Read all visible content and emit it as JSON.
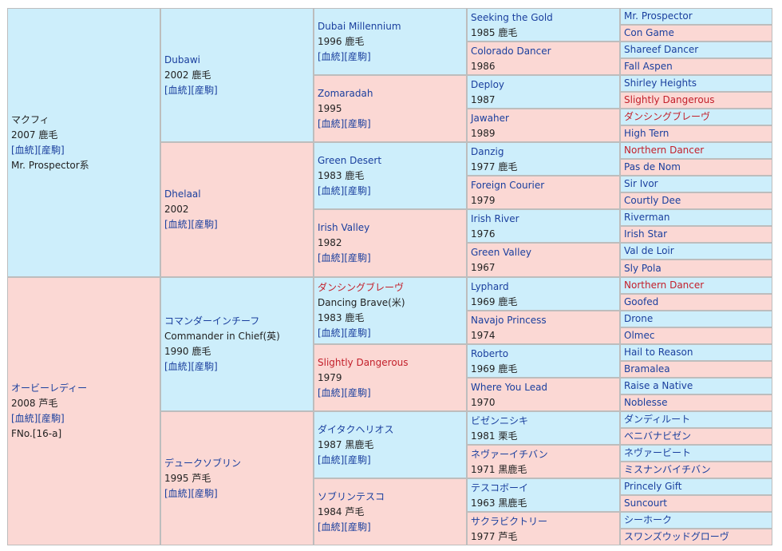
{
  "columns": [
    [
      {
        "sex": "m",
        "name": "マクフィ",
        "red": false,
        "plain": true,
        "sub": [
          "2007 鹿毛"
        ],
        "links": [
          "[血統]",
          "[産駒]"
        ],
        "extra": [
          "Mr. Prospector系"
        ]
      },
      {
        "sex": "f",
        "name": "オービーレディー",
        "red": false,
        "plain": false,
        "sub": [
          "2008 芦毛"
        ],
        "links": [
          "[血統]",
          "[産駒]"
        ],
        "extra": [
          "FNo.[16-a]"
        ]
      }
    ],
    [
      {
        "sex": "m",
        "name": "Dubawi",
        "red": false,
        "plain": false,
        "sub": [
          "2002 鹿毛"
        ],
        "links": [
          "[血統]",
          "[産駒]"
        ],
        "extra": []
      },
      {
        "sex": "f",
        "name": "Dhelaal",
        "red": false,
        "plain": false,
        "sub": [
          "2002"
        ],
        "links": [
          "[血統]",
          "[産駒]"
        ],
        "extra": []
      },
      {
        "sex": "m",
        "name": "コマンダーインチーフ",
        "red": false,
        "plain": false,
        "sub": [
          "Commander in Chief(英)",
          "1990 鹿毛"
        ],
        "links": [
          "[血統]",
          "[産駒]"
        ],
        "extra": []
      },
      {
        "sex": "f",
        "name": "デュークソブリン",
        "red": false,
        "plain": false,
        "sub": [
          "1995 芦毛"
        ],
        "links": [
          "[血統]",
          "[産駒]"
        ],
        "extra": []
      }
    ],
    [
      {
        "sex": "m",
        "name": "Dubai Millennium",
        "red": false,
        "plain": false,
        "sub": [
          "1996 鹿毛"
        ],
        "links": [
          "[血統]",
          "[産駒]"
        ],
        "extra": []
      },
      {
        "sex": "f",
        "name": "Zomaradah",
        "red": false,
        "plain": false,
        "sub": [
          "1995"
        ],
        "links": [
          "[血統]",
          "[産駒]"
        ],
        "extra": []
      },
      {
        "sex": "m",
        "name": "Green Desert",
        "red": false,
        "plain": false,
        "sub": [
          "1983 鹿毛"
        ],
        "links": [
          "[血統]",
          "[産駒]"
        ],
        "extra": []
      },
      {
        "sex": "f",
        "name": "Irish Valley",
        "red": false,
        "plain": false,
        "sub": [
          "1982"
        ],
        "links": [
          "[血統]",
          "[産駒]"
        ],
        "extra": []
      },
      {
        "sex": "m",
        "name": "ダンシングブレーヴ",
        "red": true,
        "plain": false,
        "sub": [
          "Dancing Brave(米)",
          "1983 鹿毛"
        ],
        "links": [
          "[血統]",
          "[産駒]"
        ],
        "extra": []
      },
      {
        "sex": "f",
        "name": "Slightly Dangerous",
        "red": true,
        "plain": false,
        "sub": [
          "1979"
        ],
        "links": [
          "[血統]",
          "[産駒]"
        ],
        "extra": []
      },
      {
        "sex": "m",
        "name": "ダイタクヘリオス",
        "red": false,
        "plain": false,
        "sub": [
          "1987 黒鹿毛"
        ],
        "links": [
          "[血統]",
          "[産駒]"
        ],
        "extra": []
      },
      {
        "sex": "f",
        "name": "ソブリンテスコ",
        "red": false,
        "plain": false,
        "sub": [
          "1984 芦毛"
        ],
        "links": [
          "[血統]",
          "[産駒]"
        ],
        "extra": []
      }
    ],
    [
      {
        "sex": "m",
        "name": "Seeking the Gold",
        "red": false,
        "plain": false,
        "sub": [
          "1985 鹿毛"
        ],
        "links": [],
        "extra": []
      },
      {
        "sex": "f",
        "name": "Colorado Dancer",
        "red": false,
        "plain": false,
        "sub": [
          "1986"
        ],
        "links": [],
        "extra": []
      },
      {
        "sex": "m",
        "name": "Deploy",
        "red": false,
        "plain": false,
        "sub": [
          "1987"
        ],
        "links": [],
        "extra": []
      },
      {
        "sex": "f",
        "name": "Jawaher",
        "red": false,
        "plain": false,
        "sub": [
          "1989"
        ],
        "links": [],
        "extra": []
      },
      {
        "sex": "m",
        "name": "Danzig",
        "red": false,
        "plain": false,
        "sub": [
          "1977 鹿毛"
        ],
        "links": [],
        "extra": []
      },
      {
        "sex": "f",
        "name": "Foreign Courier",
        "red": false,
        "plain": false,
        "sub": [
          "1979"
        ],
        "links": [],
        "extra": []
      },
      {
        "sex": "m",
        "name": "Irish River",
        "red": false,
        "plain": false,
        "sub": [
          "1976"
        ],
        "links": [],
        "extra": []
      },
      {
        "sex": "f",
        "name": "Green Valley",
        "red": false,
        "plain": false,
        "sub": [
          "1967"
        ],
        "links": [],
        "extra": []
      },
      {
        "sex": "m",
        "name": "Lyphard",
        "red": false,
        "plain": false,
        "sub": [
          "1969 鹿毛"
        ],
        "links": [],
        "extra": []
      },
      {
        "sex": "f",
        "name": "Navajo Princess",
        "red": false,
        "plain": false,
        "sub": [
          "1974"
        ],
        "links": [],
        "extra": []
      },
      {
        "sex": "m",
        "name": "Roberto",
        "red": false,
        "plain": false,
        "sub": [
          "1969 鹿毛"
        ],
        "links": [],
        "extra": []
      },
      {
        "sex": "f",
        "name": "Where You Lead",
        "red": false,
        "plain": false,
        "sub": [
          "1970"
        ],
        "links": [],
        "extra": []
      },
      {
        "sex": "m",
        "name": "ビゼンニシキ",
        "red": false,
        "plain": false,
        "sub": [
          "1981 栗毛"
        ],
        "links": [],
        "extra": []
      },
      {
        "sex": "f",
        "name": "ネヴァーイチバン",
        "red": false,
        "plain": false,
        "sub": [
          "1971 黒鹿毛"
        ],
        "links": [],
        "extra": []
      },
      {
        "sex": "m",
        "name": "テスコボーイ",
        "red": false,
        "plain": false,
        "sub": [
          "1963 黒鹿毛"
        ],
        "links": [],
        "extra": []
      },
      {
        "sex": "f",
        "name": "サクラビクトリー",
        "red": false,
        "plain": false,
        "sub": [
          "1977 芦毛"
        ],
        "links": [],
        "extra": []
      }
    ],
    [
      {
        "sex": "m",
        "name": "Mr. Prospector",
        "red": false,
        "plain": false,
        "sub": [],
        "links": [],
        "extra": []
      },
      {
        "sex": "f",
        "name": "Con Game",
        "red": false,
        "plain": false,
        "sub": [],
        "links": [],
        "extra": []
      },
      {
        "sex": "m",
        "name": "Shareef Dancer",
        "red": false,
        "plain": false,
        "sub": [],
        "links": [],
        "extra": []
      },
      {
        "sex": "f",
        "name": "Fall Aspen",
        "red": false,
        "plain": false,
        "sub": [],
        "links": [],
        "extra": []
      },
      {
        "sex": "m",
        "name": "Shirley Heights",
        "red": false,
        "plain": false,
        "sub": [],
        "links": [],
        "extra": []
      },
      {
        "sex": "f",
        "name": "Slightly Dangerous",
        "red": true,
        "plain": false,
        "sub": [],
        "links": [],
        "extra": []
      },
      {
        "sex": "m",
        "name": "ダンシングブレーヴ",
        "red": true,
        "plain": false,
        "sub": [],
        "links": [],
        "extra": []
      },
      {
        "sex": "f",
        "name": "High Tern",
        "red": false,
        "plain": false,
        "sub": [],
        "links": [],
        "extra": []
      },
      {
        "sex": "m",
        "name": "Northern Dancer",
        "red": true,
        "plain": false,
        "sub": [],
        "links": [],
        "extra": []
      },
      {
        "sex": "f",
        "name": "Pas de Nom",
        "red": false,
        "plain": false,
        "sub": [],
        "links": [],
        "extra": []
      },
      {
        "sex": "m",
        "name": "Sir Ivor",
        "red": false,
        "plain": false,
        "sub": [],
        "links": [],
        "extra": []
      },
      {
        "sex": "f",
        "name": "Courtly Dee",
        "red": false,
        "plain": false,
        "sub": [],
        "links": [],
        "extra": []
      },
      {
        "sex": "m",
        "name": "Riverman",
        "red": false,
        "plain": false,
        "sub": [],
        "links": [],
        "extra": []
      },
      {
        "sex": "f",
        "name": "Irish Star",
        "red": false,
        "plain": false,
        "sub": [],
        "links": [],
        "extra": []
      },
      {
        "sex": "m",
        "name": "Val de Loir",
        "red": false,
        "plain": false,
        "sub": [],
        "links": [],
        "extra": []
      },
      {
        "sex": "f",
        "name": "Sly Pola",
        "red": false,
        "plain": false,
        "sub": [],
        "links": [],
        "extra": []
      },
      {
        "sex": "m",
        "name": "Northern Dancer",
        "red": true,
        "plain": false,
        "sub": [],
        "links": [],
        "extra": []
      },
      {
        "sex": "f",
        "name": "Goofed",
        "red": false,
        "plain": false,
        "sub": [],
        "links": [],
        "extra": []
      },
      {
        "sex": "m",
        "name": "Drone",
        "red": false,
        "plain": false,
        "sub": [],
        "links": [],
        "extra": []
      },
      {
        "sex": "f",
        "name": "Olmec",
        "red": false,
        "plain": false,
        "sub": [],
        "links": [],
        "extra": []
      },
      {
        "sex": "m",
        "name": "Hail to Reason",
        "red": false,
        "plain": false,
        "sub": [],
        "links": [],
        "extra": []
      },
      {
        "sex": "f",
        "name": "Bramalea",
        "red": false,
        "plain": false,
        "sub": [],
        "links": [],
        "extra": []
      },
      {
        "sex": "m",
        "name": "Raise a Native",
        "red": false,
        "plain": false,
        "sub": [],
        "links": [],
        "extra": []
      },
      {
        "sex": "f",
        "name": "Noblesse",
        "red": false,
        "plain": false,
        "sub": [],
        "links": [],
        "extra": []
      },
      {
        "sex": "m",
        "name": "ダンディルート",
        "red": false,
        "plain": false,
        "sub": [],
        "links": [],
        "extra": []
      },
      {
        "sex": "f",
        "name": "ベニバナビゼン",
        "red": false,
        "plain": false,
        "sub": [],
        "links": [],
        "extra": []
      },
      {
        "sex": "m",
        "name": "ネヴァービート",
        "red": false,
        "plain": false,
        "sub": [],
        "links": [],
        "extra": []
      },
      {
        "sex": "f",
        "name": "ミスナンバイチバン",
        "red": false,
        "plain": false,
        "sub": [],
        "links": [],
        "extra": []
      },
      {
        "sex": "m",
        "name": "Princely Gift",
        "red": false,
        "plain": false,
        "sub": [],
        "links": [],
        "extra": []
      },
      {
        "sex": "f",
        "name": "Suncourt",
        "red": false,
        "plain": false,
        "sub": [],
        "links": [],
        "extra": []
      },
      {
        "sex": "m",
        "name": "シーホーク",
        "red": false,
        "plain": false,
        "sub": [],
        "links": [],
        "extra": []
      },
      {
        "sex": "f",
        "name": "スワンズウッドグローヴ",
        "red": false,
        "plain": false,
        "sub": [],
        "links": [],
        "extra": []
      }
    ]
  ]
}
